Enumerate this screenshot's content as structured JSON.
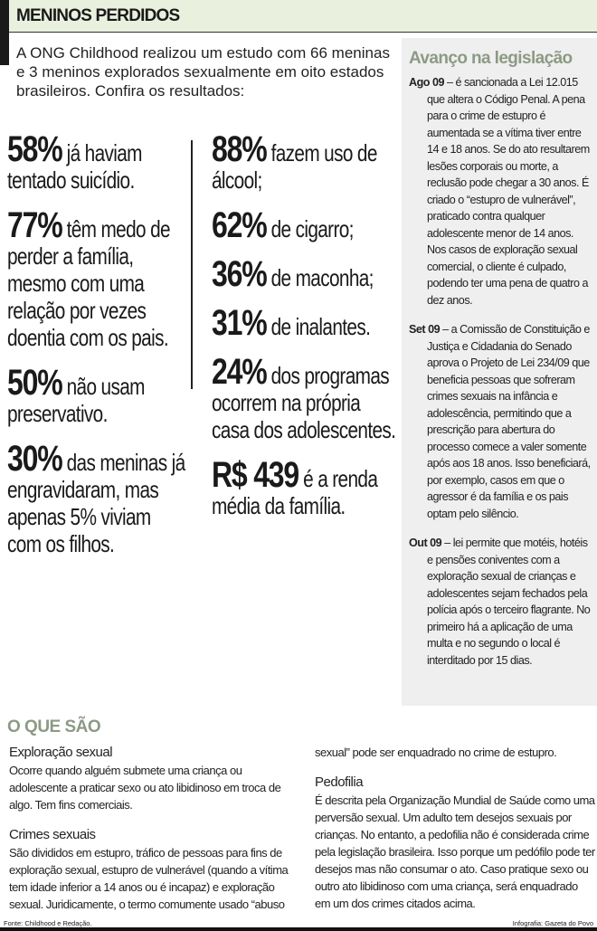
{
  "header": {
    "title": "MENINOS PERDIDOS"
  },
  "intro": "A ONG Childhood realizou um estudo com 66 meninas e 3 meninos explorados sexualmente em oito estados brasileiros. Confira os resultados:",
  "stats_left": [
    {
      "value": "58%",
      "text": " já haviam tentado suicídio."
    },
    {
      "value": "77%",
      "text": " têm medo de perder a família, mesmo com uma relação por vezes doentia com os pais."
    },
    {
      "value": "50%",
      "text": " não usam preservativo."
    },
    {
      "value": "30%",
      "text": " das meninas já engravidaram, mas apenas 5% viviam com os filhos."
    }
  ],
  "stats_right": [
    {
      "value": "88%",
      "text": " fazem uso de álcool;"
    },
    {
      "value": "62%",
      "text": " de cigarro;"
    },
    {
      "value": "36%",
      "text": " de maconha;"
    },
    {
      "value": "31%",
      "text": " de inalantes."
    },
    {
      "value": "24%",
      "text": " dos programas ocorrem na própria casa dos adolescentes."
    },
    {
      "value": "R$ 439",
      "text": " é a renda média da família."
    }
  ],
  "legislation": {
    "title": "Avanço na legislação",
    "items": [
      {
        "date": "Ago 09",
        "text": " – é sancionada a Lei 12.015 que altera o Código Penal. A pena para o crime de estupro é aumentada se a vítima tiver entre 14 e 18 anos. Se do ato resultarem lesões corporais ou morte, a reclusão pode chegar a 30 anos. É criado o “estupro de vulnerável”, praticado contra qualquer adolescente menor de 14 anos. Nos casos de exploração sexual comercial, o cliente é culpado, podendo ter uma pena de quatro a dez anos."
      },
      {
        "date": "Set 09",
        "text": " – a Comissão de Constituição e Justiça e Cidadania do Senado aprova o Projeto de Lei 234/09 que beneficia pessoas que sofreram crimes sexuais na infância e adolescência, permitindo que a prescrição para abertura do processo comece a valer somente após aos 18 anos. Isso beneficiará, por exemplo, casos em que o agressor é da família e os pais optam pelo silêncio."
      },
      {
        "date": "Out 09",
        "text": " – lei permite que motéis, hotéis e pensões coniventes com a exploração sexual de crianças e adolescentes sejam fechados pela polícia após o terceiro flagrante. No primeiro há a aplicação de uma multa e no segundo o local é interditado por 15 dias."
      }
    ]
  },
  "definitions": {
    "title": "O QUE SÃO",
    "items": [
      {
        "term": "Exploração sexual",
        "text": "Ocorre quando alguém submete uma criança ou adolescente a praticar sexo ou ato libidinoso em troca de algo. Tem fins comerciais."
      },
      {
        "term": "Crimes sexuais",
        "text": "São divididos em estupro, tráfico de pessoas para fins de exploração sexual, estupro de vulnerável (quando a vítima tem idade inferior a 14 anos ou é incapaz) e exploração sexual. Juridicamente, o termo comumente usado “abuso",
        "continuation": "sexual” pode ser enquadrado no crime de estupro."
      },
      {
        "term": "Pedofilia",
        "text": "É descrita pela Organização Mundial de Saúde como uma perversão sexual. Um adulto tem desejos sexuais por crianças. No entanto, a pedofilia não é considerada crime pela legislação brasileira. Isso porque um pedófilo pode ter desejos mas não consumar o ato. Caso pratique sexo ou outro ato libidinoso com uma criança, será enquadrado em um dos crimes citados acima."
      }
    ]
  },
  "footer": {
    "source": "Fonte: Childhood e Redação.",
    "credit": "Infografia: Gazeta do Povo"
  }
}
